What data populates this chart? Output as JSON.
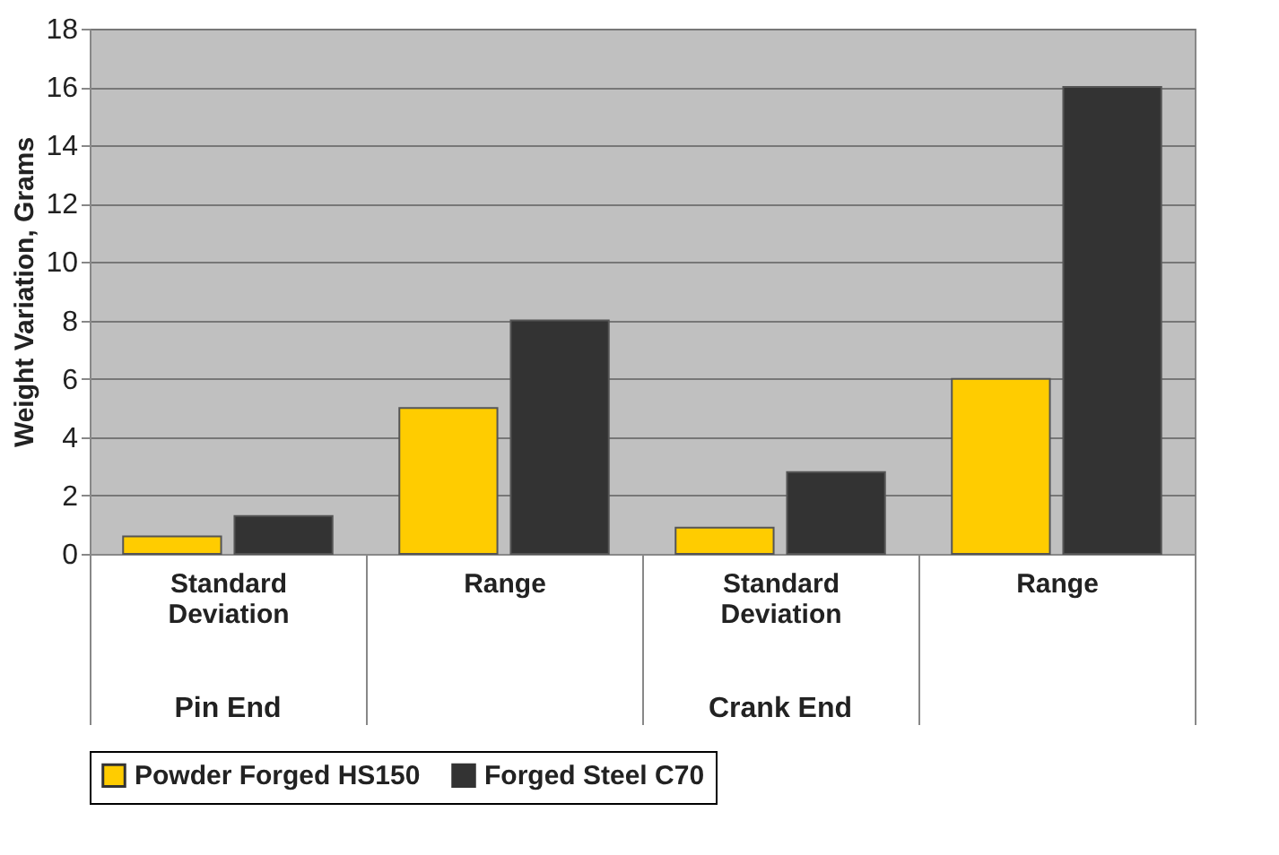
{
  "chart_data": {
    "type": "bar",
    "categories": [
      "Standard Deviation",
      "Range",
      "Standard Deviation",
      "Range"
    ],
    "series": [
      {
        "name": "Powder Forged HS150",
        "color": "#ffcc00",
        "values": [
          0.6,
          5,
          0.9,
          6
        ]
      },
      {
        "name": "Forged Steel C70",
        "color": "#333333",
        "values": [
          1.3,
          8,
          2.8,
          16
        ]
      }
    ],
    "ylabel": "Weight Variation, Grams",
    "ylim": [
      0,
      18
    ],
    "yticks": [
      0,
      2,
      4,
      6,
      8,
      10,
      12,
      14,
      16,
      18
    ],
    "grid": "y",
    "legend": "bottom",
    "annotations": [
      "Pin End",
      "Crank End"
    ]
  }
}
